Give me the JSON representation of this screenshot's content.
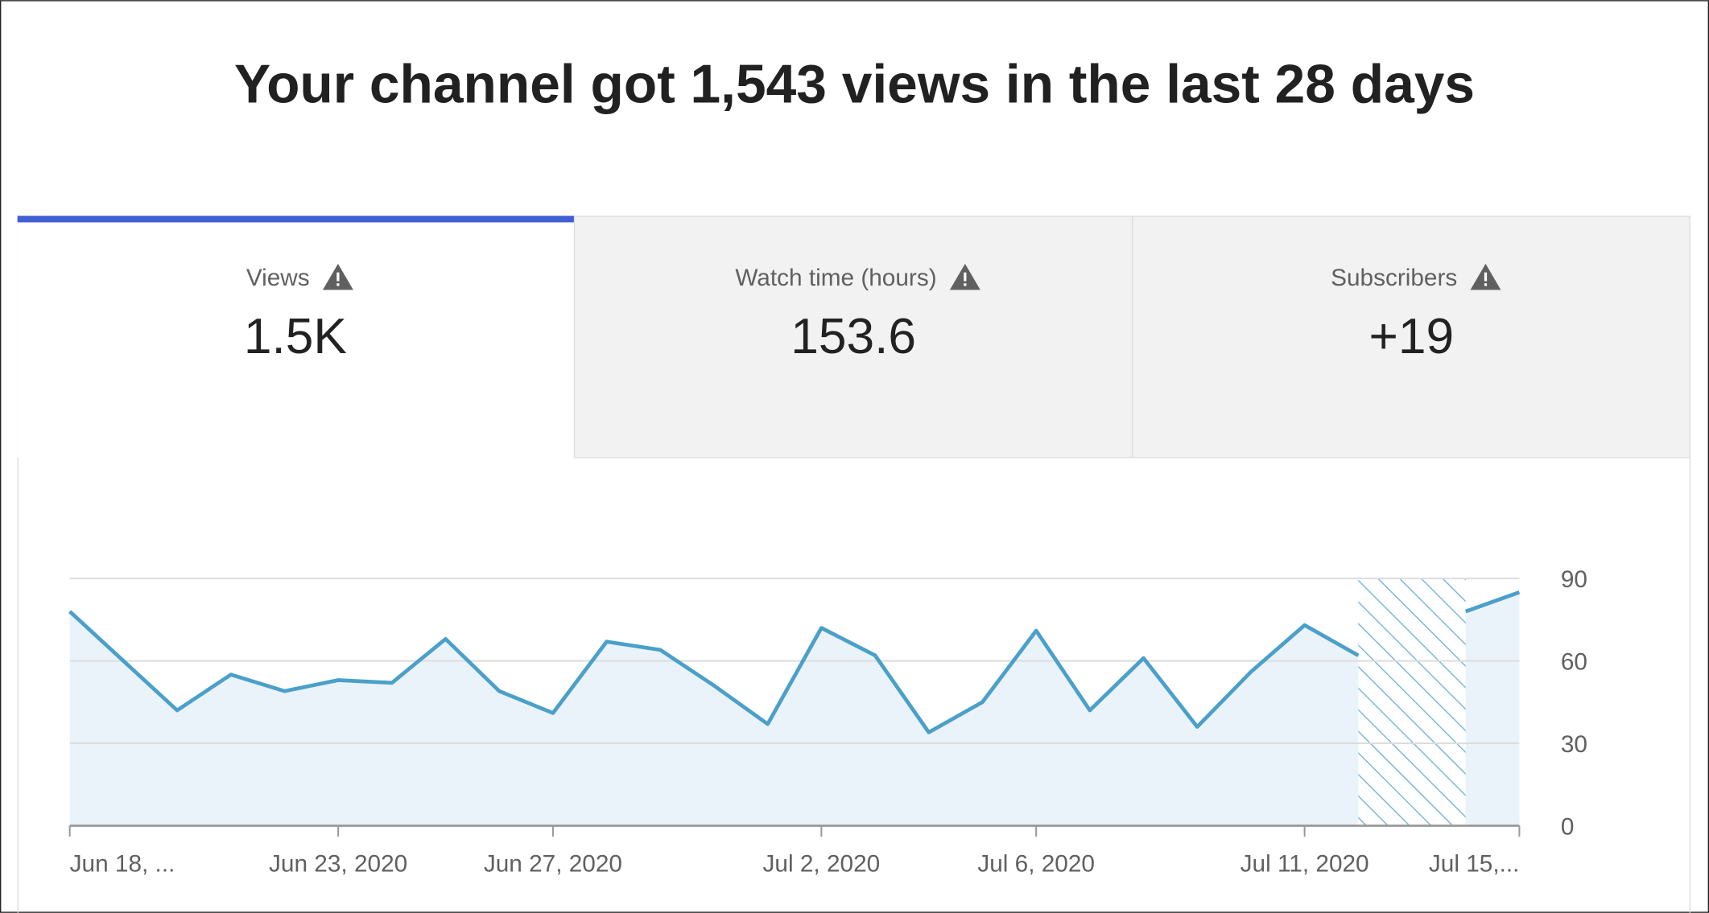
{
  "header": {
    "title": "Your channel got 1,543 views in the last 28 days"
  },
  "tabs": [
    {
      "label": "Views",
      "value": "1.5K"
    },
    {
      "label": "Watch time (hours)",
      "value": "153.6"
    },
    {
      "label": "Subscribers",
      "value": "+19"
    }
  ],
  "chart_data": {
    "type": "line",
    "categories": [
      "Jun 18, ...",
      null,
      null,
      null,
      null,
      "Jun 23, 2020",
      null,
      null,
      null,
      "Jun 27, 2020",
      null,
      null,
      null,
      null,
      "Jul 2, 2020",
      null,
      null,
      null,
      "Jul 6, 2020",
      null,
      null,
      null,
      null,
      "Jul 11, 2020",
      null,
      null,
      null,
      "Jul 15,..."
    ],
    "series": [
      {
        "name": "Views",
        "color": "#4ba0c9",
        "values": [
          78,
          60,
          42,
          55,
          49,
          53,
          52,
          68,
          49,
          41,
          67,
          64,
          51,
          37,
          72,
          62,
          34,
          45,
          71,
          42,
          61,
          36,
          56,
          73,
          62,
          null,
          78,
          85
        ]
      }
    ],
    "ylim": [
      0,
      90
    ],
    "yticks": [
      0,
      30,
      60,
      90
    ],
    "grid": true
  }
}
